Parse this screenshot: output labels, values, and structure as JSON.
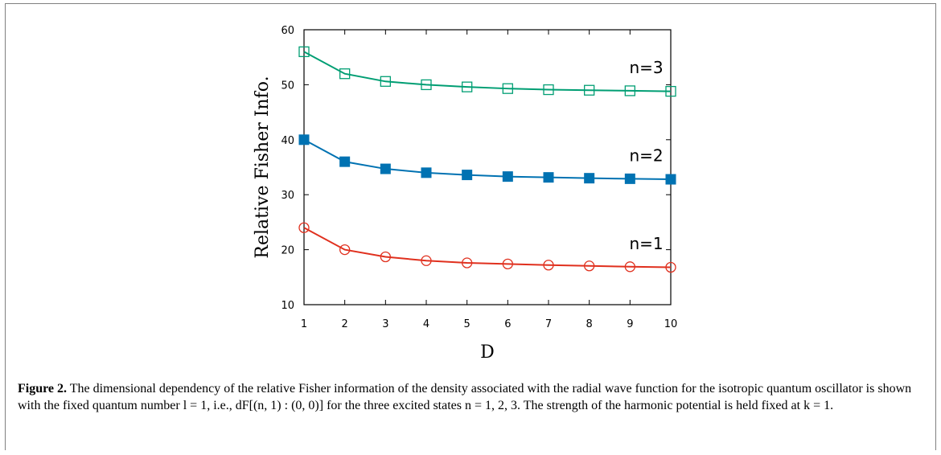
{
  "chart_data": {
    "type": "line",
    "xlabel": "D",
    "ylabel": "Relative Fisher Info.",
    "xlim": [
      1,
      10
    ],
    "ylim": [
      10,
      60
    ],
    "x": [
      1,
      2,
      3,
      4,
      5,
      6,
      7,
      8,
      9,
      10
    ],
    "xticks": [
      "1",
      "2",
      "3",
      "4",
      "5",
      "6",
      "7",
      "8",
      "9",
      "10"
    ],
    "yticks": [
      "10",
      "20",
      "30",
      "40",
      "50",
      "60"
    ],
    "grid": false,
    "series": [
      {
        "name": "n=1",
        "marker": "open-circle",
        "color": "#e0301e",
        "values": [
          24.0,
          20.0,
          18.7,
          18.0,
          17.6,
          17.4,
          17.2,
          17.05,
          16.9,
          16.8
        ]
      },
      {
        "name": "n=2",
        "marker": "filled-square",
        "color": "#0072b2",
        "values": [
          40.0,
          36.0,
          34.7,
          34.0,
          33.6,
          33.3,
          33.15,
          33.0,
          32.9,
          32.8
        ]
      },
      {
        "name": "n=3",
        "marker": "open-square",
        "color": "#009e73",
        "values": [
          56.0,
          52.0,
          50.6,
          50.0,
          49.6,
          49.3,
          49.1,
          49.0,
          48.9,
          48.8
        ]
      }
    ]
  },
  "caption": {
    "label": "Figure 2.",
    "text": " The dimensional dependency of the relative Fisher information of the density associated with the radial wave function for the isotropic quantum oscillator is shown with the fixed quantum number l = 1, i.e., dF[(n, 1) : (0, 0)] for the three excited states n = 1, 2, 3. The strength of the harmonic potential is held fixed at k = 1."
  }
}
